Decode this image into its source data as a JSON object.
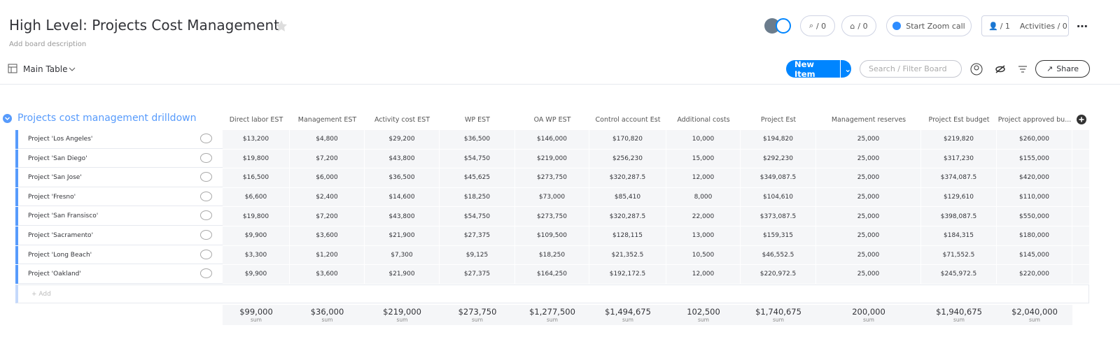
{
  "header": {
    "title": "High Level: Projects Cost Management",
    "description": "Add board description",
    "view": "Main Table",
    "updates_count": "/ 0",
    "inbox_count": "/ 0",
    "zoom": "Start Zoom call",
    "members": "/ 1",
    "activities": "Activities / 0",
    "new_item": "New Item",
    "search_placeholder": "Search / Filter Board",
    "share": "Share"
  },
  "table": {
    "group_title": "Projects cost management drilldown",
    "columns": [
      "Direct labor EST",
      "Management EST",
      "Activity cost EST",
      "WP EST",
      "OA WP EST",
      "Control account Est",
      "Additional costs",
      "Project Est",
      "Management reserves",
      "Project Est budget",
      "Project approved bu..."
    ],
    "rows": [
      {
        "name": "Project 'Los Angeles'",
        "cells": [
          "$13,200",
          "$4,800",
          "$29,200",
          "$36,500",
          "$146,000",
          "$170,820",
          "10,000",
          "$194,820",
          "25,000",
          "$219,820",
          "$260,000"
        ]
      },
      {
        "name": "Project 'San Diego'",
        "cells": [
          "$19,800",
          "$7,200",
          "$43,800",
          "$54,750",
          "$219,000",
          "$256,230",
          "15,000",
          "$292,230",
          "25,000",
          "$317,230",
          "$155,000"
        ]
      },
      {
        "name": "Project 'San Jose'",
        "cells": [
          "$16,500",
          "$6,000",
          "$36,500",
          "$45,625",
          "$273,750",
          "$320,287.5",
          "12,000",
          "$349,087.5",
          "25,000",
          "$374,087.5",
          "$420,000"
        ]
      },
      {
        "name": "Project 'Fresno'",
        "cells": [
          "$6,600",
          "$2,400",
          "$14,600",
          "$18,250",
          "$73,000",
          "$85,410",
          "8,000",
          "$104,610",
          "25,000",
          "$129,610",
          "$110,000"
        ]
      },
      {
        "name": "Project 'San Fransisco'",
        "cells": [
          "$19,800",
          "$7,200",
          "$43,800",
          "$54,750",
          "$273,750",
          "$320,287.5",
          "22,000",
          "$373,087.5",
          "25,000",
          "$398,087.5",
          "$550,000"
        ]
      },
      {
        "name": "Project 'Sacramento'",
        "cells": [
          "$9,900",
          "$3,600",
          "$21,900",
          "$27,375",
          "$109,500",
          "$128,115",
          "13,000",
          "$159,315",
          "25,000",
          "$184,315",
          "$180,000"
        ]
      },
      {
        "name": "Project 'Long Beach'",
        "cells": [
          "$3,300",
          "$1,200",
          "$7,300",
          "$9,125",
          "$18,250",
          "$21,352.5",
          "10,500",
          "$46,552.5",
          "25,000",
          "$71,552.5",
          "$145,000"
        ]
      },
      {
        "name": "Project 'Oakland'",
        "cells": [
          "$9,900",
          "$3,600",
          "$21,900",
          "$27,375",
          "$164,250",
          "$192,172.5",
          "12,000",
          "$220,972.5",
          "25,000",
          "$245,972.5",
          "$220,000"
        ]
      }
    ],
    "add_row": "+ Add",
    "sums": [
      "$99,000",
      "$36,000",
      "$219,000",
      "$273,750",
      "$1,277,500",
      "$1,494,675",
      "102,500",
      "$1,740,675",
      "200,000",
      "$1,940,675",
      "$2,040,000"
    ],
    "sum_label": "sum"
  }
}
